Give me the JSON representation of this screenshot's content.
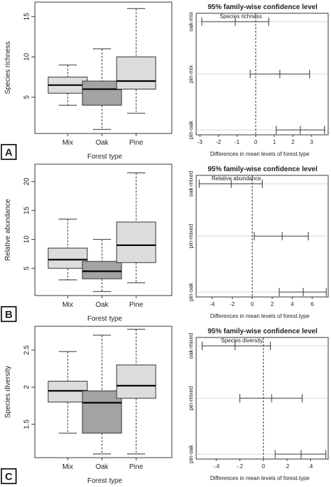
{
  "chart_data": [
    {
      "panel": "A",
      "box": {
        "type": "box",
        "xlabel": "Forest type",
        "ylabel": "Species richness",
        "ylim": [
          0.5,
          16.8
        ],
        "yticks": [
          5,
          10,
          15
        ],
        "categories": [
          "Mix",
          "Oak",
          "Pine"
        ],
        "colors": [
          "#dcdcdc",
          "#a3a3a3",
          "#dcdcdc"
        ],
        "boxes": [
          {
            "min": 4,
            "q1": 5.5,
            "median": 6.5,
            "q3": 7.5,
            "max": 9
          },
          {
            "min": 1,
            "q1": 4,
            "median": 6,
            "q3": 7,
            "max": 11
          },
          {
            "min": 3,
            "q1": 6,
            "median": 7,
            "q3": 10,
            "max": 16
          }
        ]
      },
      "ci": {
        "type": "interval",
        "title": "95% family-wise confidence level",
        "xlabel": "Differences in mean levels of forest.type",
        "annotation": "Species richness",
        "xlim": [
          -3.2,
          3.9
        ],
        "xticks": [
          -3,
          -2,
          -1,
          0,
          1,
          2,
          3
        ],
        "comparisons": [
          {
            "label": "oak-mix",
            "lwr": -2.9,
            "est": -1.1,
            "upr": 0.7
          },
          {
            "label": "pin-mix",
            "lwr": -0.3,
            "est": 1.3,
            "upr": 2.9
          },
          {
            "label": "pin-oak",
            "lwr": 1.1,
            "est": 2.4,
            "upr": 3.7
          }
        ]
      }
    },
    {
      "panel": "B",
      "box": {
        "type": "box",
        "xlabel": "Forest type",
        "ylabel": "Relative abundance",
        "ylim": [
          0.3,
          23.0
        ],
        "yticks": [
          5,
          10,
          15,
          20
        ],
        "categories": [
          "Mix",
          "Oak",
          "Pine"
        ],
        "colors": [
          "#dcdcdc",
          "#a3a3a3",
          "#dcdcdc"
        ],
        "boxes": [
          {
            "min": 3,
            "q1": 5,
            "median": 6.5,
            "q3": 8.5,
            "max": 13.5
          },
          {
            "min": 1,
            "q1": 3.2,
            "median": 4.5,
            "q3": 6.2,
            "max": 10
          },
          {
            "min": 2.5,
            "q1": 6,
            "median": 9,
            "q3": 13,
            "max": 21.5
          }
        ]
      },
      "ci": {
        "type": "interval",
        "title": "95% family-wise confidence level",
        "xlabel": "Differences in mean levels of forest.type",
        "annotation": "Relative abundance",
        "xlim": [
          -5.6,
          7.6
        ],
        "xticks": [
          -4,
          -2,
          0,
          2,
          4,
          6
        ],
        "comparisons": [
          {
            "label": "oak-mixed",
            "lwr": -5.3,
            "est": -2.1,
            "upr": 1.0
          },
          {
            "label": "pin-mixed",
            "lwr": 0.2,
            "est": 3.0,
            "upr": 5.6
          },
          {
            "label": "pin-oak",
            "lwr": 2.7,
            "est": 5.1,
            "upr": 7.4
          }
        ]
      }
    },
    {
      "panel": "C",
      "box": {
        "type": "box",
        "xlabel": "Forest type",
        "ylabel": "Species diversity",
        "ylim": [
          1.05,
          2.82
        ],
        "yticks": [
          1.5,
          2.0,
          2.5
        ],
        "categories": [
          "Mix",
          "Oak",
          "Pine"
        ],
        "colors": [
          "#dcdcdc",
          "#a3a3a3",
          "#dcdcdc"
        ],
        "boxes": [
          {
            "min": 1.38,
            "q1": 1.8,
            "median": 1.95,
            "q3": 2.08,
            "max": 2.48
          },
          {
            "min": 1.1,
            "q1": 1.38,
            "median": 1.79,
            "q3": 1.95,
            "max": 2.7
          },
          {
            "min": 1.1,
            "q1": 1.85,
            "median": 2.02,
            "q3": 2.3,
            "max": 2.78
          }
        ]
      },
      "ci": {
        "type": "interval",
        "title": "95% family-wise confidence level",
        "xlabel": "Differences in mean levels of forest.type",
        "annotation": "Species diversity",
        "xlim": [
          -0.57,
          0.55
        ],
        "xticks": [
          -0.4,
          -0.2,
          0.0,
          0.2,
          0.4
        ],
        "comparisons": [
          {
            "label": "oak-mixed",
            "lwr": -0.52,
            "est": -0.24,
            "upr": 0.06
          },
          {
            "label": "pin-mixed",
            "lwr": -0.2,
            "est": 0.07,
            "upr": 0.33
          },
          {
            "label": "pin-oak",
            "lwr": 0.1,
            "est": 0.32,
            "upr": 0.53
          }
        ]
      }
    }
  ]
}
